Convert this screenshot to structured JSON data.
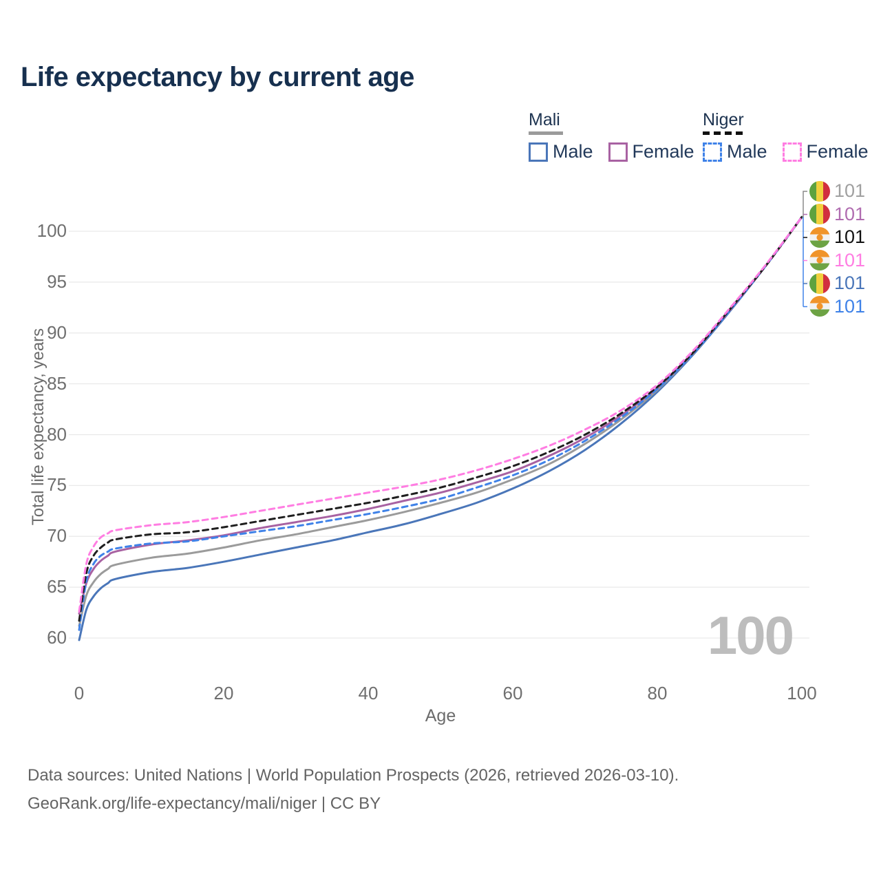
{
  "title": "Life expectancy by current age",
  "legend": {
    "groups": [
      {
        "name": "Mali",
        "line_style": "solid",
        "line_color": "#9b9b9b",
        "items": [
          {
            "label": "Male",
            "color": "#4a76b9",
            "style": "solid"
          },
          {
            "label": "Female",
            "color": "#a862a2",
            "style": "solid"
          }
        ]
      },
      {
        "name": "Niger",
        "line_style": "dashed",
        "line_color": "#1f1f1f",
        "items": [
          {
            "label": "Male",
            "color": "#3f82e8",
            "style": "dashed"
          },
          {
            "label": "Female",
            "color": "#ff7de2",
            "style": "dashed"
          }
        ]
      }
    ]
  },
  "chart_data": {
    "type": "line",
    "title": "Life expectancy by current age",
    "xlabel": "Age",
    "ylabel": "Total life expectancy, years",
    "xlim": [
      0,
      100
    ],
    "ylim": [
      60,
      101.5
    ],
    "x_ticks": [
      0,
      20,
      40,
      60,
      80,
      100
    ],
    "y_ticks": [
      60,
      65,
      70,
      75,
      80,
      85,
      90,
      95,
      100
    ],
    "grid": "horizontal",
    "gridline_color": "#e9e9e9",
    "age_indicator": "100",
    "ages": [
      0,
      1,
      2,
      3,
      4,
      5,
      10,
      15,
      20,
      25,
      30,
      35,
      40,
      45,
      50,
      55,
      60,
      65,
      70,
      75,
      80,
      85,
      90,
      95,
      100
    ],
    "series": [
      {
        "name": "Mali",
        "sex": "Male",
        "style": "solid",
        "color": "#4a76b9",
        "values": [
          59.8,
          62.8,
          64.1,
          64.9,
          65.4,
          65.8,
          66.5,
          66.9,
          67.5,
          68.2,
          68.9,
          69.6,
          70.4,
          71.2,
          72.2,
          73.3,
          74.7,
          76.4,
          78.5,
          81.1,
          84.2,
          87.9,
          92.1,
          96.6,
          101.4
        ]
      },
      {
        "name": "Mali",
        "sex": "Both",
        "style": "solid",
        "color": "#9b9b9b",
        "values": [
          61.2,
          64.2,
          65.5,
          66.3,
          66.8,
          67.2,
          67.9,
          68.3,
          68.9,
          69.6,
          70.2,
          70.9,
          71.6,
          72.4,
          73.3,
          74.3,
          75.6,
          77.1,
          79.1,
          81.5,
          84.4,
          88.0,
          92.2,
          96.6,
          101.4
        ]
      },
      {
        "name": "Mali",
        "sex": "Female",
        "style": "solid",
        "color": "#a862a2",
        "values": [
          62.4,
          65.4,
          66.8,
          67.6,
          68.1,
          68.5,
          69.2,
          69.6,
          70.1,
          70.8,
          71.4,
          72.0,
          72.7,
          73.5,
          74.3,
          75.3,
          76.4,
          77.9,
          79.7,
          81.9,
          84.6,
          88.1,
          92.2,
          96.6,
          101.4
        ]
      },
      {
        "name": "Niger",
        "sex": "Male",
        "style": "dashed",
        "color": "#3f82e8",
        "values": [
          60.8,
          65.6,
          67.3,
          68.1,
          68.5,
          68.8,
          69.3,
          69.5,
          70.0,
          70.5,
          71.0,
          71.6,
          72.2,
          72.9,
          73.7,
          74.8,
          76.0,
          77.5,
          79.4,
          81.7,
          84.5,
          88.0,
          92.2,
          96.6,
          101.4
        ]
      },
      {
        "name": "Niger",
        "sex": "Both",
        "style": "dashed",
        "color": "#1f1f1f",
        "values": [
          61.7,
          66.4,
          68.1,
          68.9,
          69.4,
          69.7,
          70.2,
          70.4,
          70.9,
          71.5,
          72.1,
          72.7,
          73.3,
          74.0,
          74.8,
          75.8,
          76.9,
          78.3,
          80.0,
          82.1,
          84.7,
          88.1,
          92.3,
          96.6,
          101.4
        ]
      },
      {
        "name": "Niger",
        "sex": "Female",
        "style": "dashed",
        "color": "#ff7de2",
        "values": [
          62.6,
          67.3,
          69.0,
          69.9,
          70.3,
          70.6,
          71.1,
          71.4,
          71.9,
          72.5,
          73.1,
          73.7,
          74.3,
          74.9,
          75.6,
          76.5,
          77.6,
          78.9,
          80.5,
          82.4,
          84.9,
          88.3,
          92.4,
          96.7,
          101.4
        ]
      }
    ],
    "end_labels": [
      {
        "flag": "mali",
        "value": "101",
        "color": "#a0a0a0"
      },
      {
        "flag": "mali",
        "value": "101",
        "color": "#b06cb0"
      },
      {
        "flag": "niger",
        "value": "101",
        "color": "#111111"
      },
      {
        "flag": "niger",
        "value": "101",
        "color": "#ff7de2"
      },
      {
        "flag": "mali",
        "value": "101",
        "color": "#4a76b9"
      },
      {
        "flag": "niger",
        "value": "101",
        "color": "#3f82e8"
      }
    ]
  },
  "footer": {
    "line1": "Data sources: United Nations | World Population Prospects (2026, retrieved 2026-03-10).",
    "line2": "GeoRank.org/life-expectancy/mali/niger | CC BY"
  }
}
